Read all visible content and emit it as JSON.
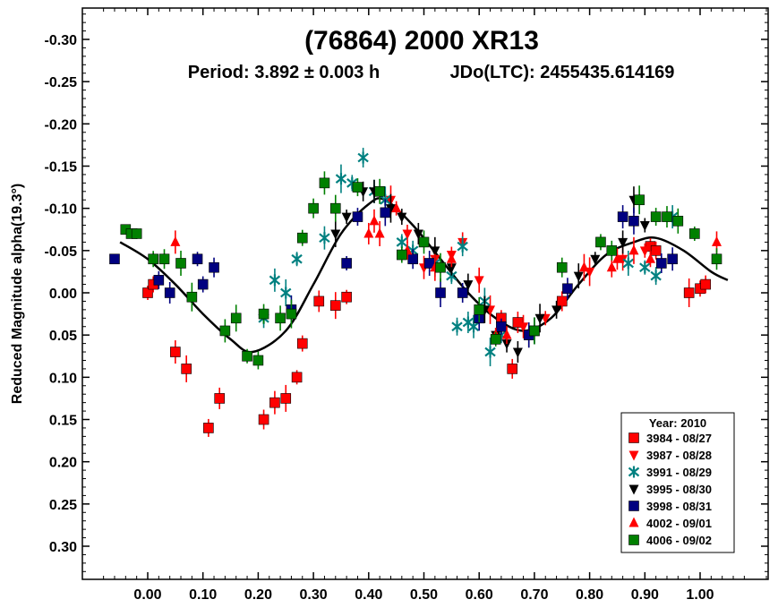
{
  "chart_data": {
    "type": "scatter",
    "title": "(76864) 2000 XR13",
    "subtitle_period": "Period: 3.892 ± 0.003 h",
    "subtitle_epoch": "JDo(LTC): 2455435.614169",
    "xlabel": "",
    "ylabel": "Reduced Magnitude alpha(19.3°)",
    "xlim": [
      -0.12,
      1.18
    ],
    "ylim": [
      -0.345,
      0.345
    ],
    "y_inverted": true,
    "x_ticks": [
      0.0,
      0.1,
      0.2,
      0.3,
      0.4,
      0.5,
      0.6,
      0.7,
      0.8,
      0.9,
      1.0
    ],
    "x_tick_labels": [
      "0.00",
      "0.10",
      "0.20",
      "0.30",
      "0.40",
      "0.50",
      "0.60",
      "0.70",
      "0.80",
      "0.90",
      "1.00"
    ],
    "y_ticks": [
      -0.3,
      -0.25,
      -0.2,
      -0.15,
      -0.1,
      -0.05,
      0.0,
      0.05,
      0.1,
      0.15,
      0.2,
      0.25,
      0.3
    ],
    "y_tick_labels": [
      "-0.30",
      "-0.25",
      "-0.20",
      "-0.15",
      "-0.10",
      "-0.05",
      "0.00",
      "0.05",
      "0.10",
      "0.15",
      "0.20",
      "0.25",
      "0.30"
    ],
    "legend_title": "Year: 2010",
    "legend_position": "bottom-right",
    "fit_curve": {
      "x": [
        -0.05,
        0.0,
        0.05,
        0.1,
        0.15,
        0.19,
        0.25,
        0.3,
        0.35,
        0.4,
        0.43,
        0.48,
        0.53,
        0.58,
        0.63,
        0.68,
        0.73,
        0.78,
        0.83,
        0.88,
        0.92,
        0.97,
        1.02,
        1.05
      ],
      "y": [
        -0.06,
        -0.04,
        -0.01,
        0.025,
        0.055,
        0.07,
        0.045,
        -0.01,
        -0.07,
        -0.105,
        -0.11,
        -0.08,
        -0.04,
        0.0,
        0.03,
        0.045,
        0.03,
        -0.01,
        -0.045,
        -0.06,
        -0.065,
        -0.05,
        -0.025,
        -0.015
      ]
    },
    "series": [
      {
        "name": "3984 - 08/27",
        "color": "#ff0000",
        "marker": "square",
        "points": [
          [
            0.0,
            0.0
          ],
          [
            0.01,
            -0.01
          ],
          [
            0.05,
            0.07
          ],
          [
            0.07,
            0.09
          ],
          [
            0.11,
            0.16
          ],
          [
            0.13,
            0.125
          ],
          [
            0.21,
            0.15
          ],
          [
            0.23,
            0.13
          ],
          [
            0.25,
            0.125
          ],
          [
            0.27,
            0.1
          ],
          [
            0.28,
            0.06
          ],
          [
            0.31,
            0.01
          ],
          [
            0.34,
            0.015
          ],
          [
            0.36,
            0.005
          ],
          [
            0.64,
            0.03
          ],
          [
            0.66,
            0.09
          ],
          [
            0.67,
            0.035
          ],
          [
            0.75,
            0.01
          ],
          [
            0.91,
            -0.055
          ],
          [
            0.92,
            -0.05
          ],
          [
            0.98,
            0.0
          ],
          [
            1.0,
            -0.005
          ],
          [
            1.01,
            -0.01
          ]
        ]
      },
      {
        "name": "3987 - 08/28",
        "color": "#ff0000",
        "marker": "triangle-down",
        "points": [
          [
            0.44,
            -0.11
          ],
          [
            0.47,
            -0.07
          ],
          [
            0.5,
            -0.03
          ],
          [
            0.52,
            -0.04
          ],
          [
            0.55,
            -0.045
          ],
          [
            0.57,
            -0.06
          ],
          [
            0.6,
            -0.015
          ],
          [
            0.62,
            0.02
          ],
          [
            0.64,
            0.04
          ],
          [
            0.68,
            0.04
          ],
          [
            0.72,
            0.03
          ],
          [
            0.75,
            0.01
          ],
          [
            0.8,
            -0.025
          ],
          [
            0.86,
            -0.04
          ],
          [
            0.9,
            -0.05
          ]
        ]
      },
      {
        "name": "3991 - 08/29",
        "color": "#008080",
        "marker": "asterisk",
        "points": [
          [
            0.21,
            0.03
          ],
          [
            0.23,
            -0.015
          ],
          [
            0.25,
            0.0
          ],
          [
            0.27,
            -0.04
          ],
          [
            0.32,
            -0.065
          ],
          [
            0.35,
            -0.135
          ],
          [
            0.37,
            -0.13
          ],
          [
            0.39,
            -0.16
          ],
          [
            0.41,
            -0.12
          ],
          [
            0.43,
            -0.11
          ],
          [
            0.46,
            -0.06
          ],
          [
            0.48,
            -0.05
          ],
          [
            0.52,
            -0.035
          ],
          [
            0.55,
            -0.02
          ],
          [
            0.56,
            0.04
          ],
          [
            0.57,
            -0.055
          ],
          [
            0.58,
            0.035
          ],
          [
            0.59,
            0.04
          ],
          [
            0.61,
            0.01
          ],
          [
            0.62,
            0.07
          ],
          [
            0.64,
            0.05
          ],
          [
            0.87,
            -0.035
          ],
          [
            0.9,
            -0.03
          ],
          [
            0.92,
            -0.02
          ],
          [
            0.95,
            -0.09
          ]
        ]
      },
      {
        "name": "3995 - 08/30",
        "color": "#000000",
        "marker": "triangle-down",
        "points": [
          [
            0.34,
            -0.07
          ],
          [
            0.36,
            -0.09
          ],
          [
            0.39,
            -0.12
          ],
          [
            0.41,
            -0.12
          ],
          [
            0.44,
            -0.1
          ],
          [
            0.46,
            -0.09
          ],
          [
            0.49,
            -0.07
          ],
          [
            0.52,
            -0.05
          ],
          [
            0.55,
            -0.03
          ],
          [
            0.58,
            -0.01
          ],
          [
            0.61,
            0.02
          ],
          [
            0.63,
            0.05
          ],
          [
            0.65,
            0.06
          ],
          [
            0.67,
            0.07
          ],
          [
            0.69,
            0.05
          ],
          [
            0.71,
            0.03
          ],
          [
            0.74,
            0.02
          ],
          [
            0.78,
            -0.02
          ],
          [
            0.81,
            -0.04
          ],
          [
            0.86,
            -0.06
          ],
          [
            0.88,
            -0.11
          ],
          [
            0.9,
            -0.08
          ]
        ]
      },
      {
        "name": "3998 - 08/31",
        "color": "#000080",
        "marker": "square",
        "points": [
          [
            -0.06,
            -0.04
          ],
          [
            0.02,
            -0.015
          ],
          [
            0.04,
            0.0
          ],
          [
            0.09,
            -0.04
          ],
          [
            0.1,
            -0.01
          ],
          [
            0.12,
            -0.03
          ],
          [
            0.26,
            0.02
          ],
          [
            0.36,
            -0.035
          ],
          [
            0.38,
            -0.09
          ],
          [
            0.43,
            -0.095
          ],
          [
            0.48,
            -0.04
          ],
          [
            0.51,
            -0.035
          ],
          [
            0.53,
            0.0
          ],
          [
            0.57,
            0.0
          ],
          [
            0.6,
            0.03
          ],
          [
            0.64,
            0.04
          ],
          [
            0.69,
            0.05
          ],
          [
            0.7,
            0.045
          ],
          [
            0.76,
            -0.005
          ],
          [
            0.86,
            -0.09
          ],
          [
            0.88,
            -0.085
          ],
          [
            0.93,
            -0.035
          ],
          [
            0.95,
            -0.04
          ]
        ]
      },
      {
        "name": "4002 - 09/01",
        "color": "#ff0000",
        "marker": "triangle-up",
        "points": [
          [
            0.05,
            -0.06
          ],
          [
            0.4,
            -0.07
          ],
          [
            0.41,
            -0.085
          ],
          [
            0.42,
            -0.07
          ],
          [
            0.45,
            -0.1
          ],
          [
            0.47,
            -0.05
          ],
          [
            0.52,
            -0.03
          ],
          [
            0.55,
            -0.04
          ],
          [
            0.63,
            0.05
          ],
          [
            0.65,
            0.05
          ],
          [
            0.79,
            -0.03
          ],
          [
            0.84,
            -0.03
          ],
          [
            0.85,
            -0.04
          ],
          [
            0.88,
            -0.05
          ],
          [
            0.91,
            -0.04
          ],
          [
            1.03,
            -0.06
          ]
        ]
      },
      {
        "name": "4006 - 09/02",
        "color": "#008000",
        "marker": "square",
        "points": [
          [
            -0.04,
            -0.075
          ],
          [
            -0.03,
            -0.07
          ],
          [
            -0.02,
            -0.07
          ],
          [
            0.01,
            -0.04
          ],
          [
            0.03,
            -0.04
          ],
          [
            0.06,
            -0.035
          ],
          [
            0.08,
            0.005
          ],
          [
            0.14,
            0.045
          ],
          [
            0.16,
            0.03
          ],
          [
            0.18,
            0.075
          ],
          [
            0.2,
            0.08
          ],
          [
            0.21,
            0.025
          ],
          [
            0.24,
            0.03
          ],
          [
            0.26,
            0.025
          ],
          [
            0.28,
            -0.065
          ],
          [
            0.3,
            -0.1
          ],
          [
            0.32,
            -0.13
          ],
          [
            0.34,
            -0.1
          ],
          [
            0.38,
            -0.125
          ],
          [
            0.42,
            -0.12
          ],
          [
            0.46,
            -0.045
          ],
          [
            0.5,
            -0.06
          ],
          [
            0.53,
            -0.03
          ],
          [
            0.6,
            0.02
          ],
          [
            0.63,
            0.055
          ],
          [
            0.7,
            0.045
          ],
          [
            0.75,
            -0.03
          ],
          [
            0.82,
            -0.06
          ],
          [
            0.84,
            -0.05
          ],
          [
            0.89,
            -0.11
          ],
          [
            0.92,
            -0.09
          ],
          [
            0.94,
            -0.09
          ],
          [
            0.96,
            -0.085
          ],
          [
            0.99,
            -0.07
          ],
          [
            1.03,
            -0.04
          ]
        ]
      }
    ]
  }
}
